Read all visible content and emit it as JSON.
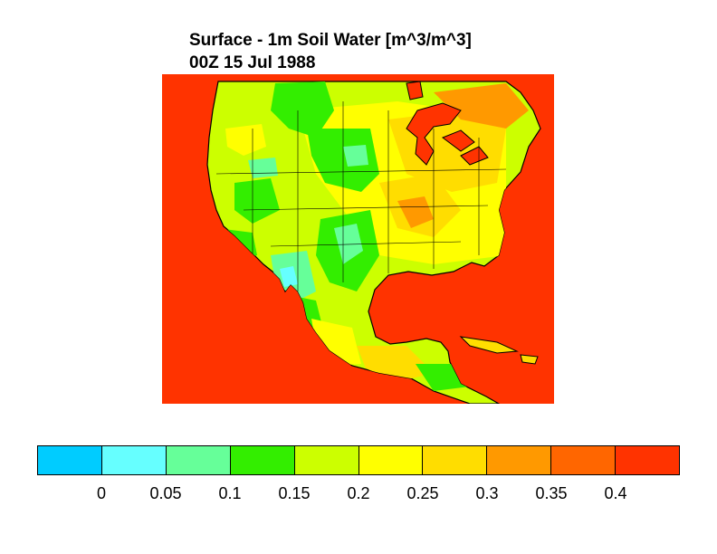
{
  "title": {
    "line1": "Surface - 1m Soil Water [m^3/m^3]",
    "line2": "00Z 15 Jul 1988"
  },
  "legend": {
    "colors": [
      "#00ccff",
      "#66ffff",
      "#66ff99",
      "#33ee00",
      "#ccff00",
      "#ffff00",
      "#ffdd00",
      "#ff9900",
      "#ff6600",
      "#ff3300"
    ],
    "ticks": [
      "0",
      "0.05",
      "0.1",
      "0.15",
      "0.2",
      "0.25",
      "0.3",
      "0.35",
      "0.4"
    ]
  },
  "map": {
    "region": "North America",
    "ocean_color": "#ff3300",
    "variable": "Surface - 1m Soil Water"
  }
}
